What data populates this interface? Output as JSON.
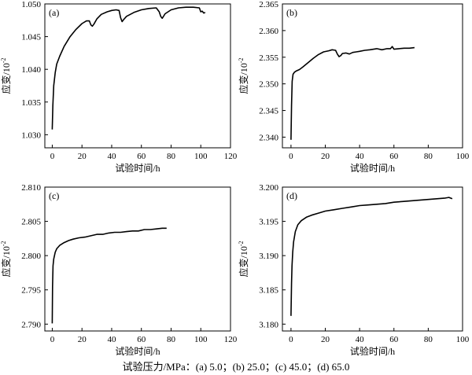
{
  "caption": "试验压力/MPa：(a) 5.0；(b) 25.0；(c) 45.0；(d) 65.0",
  "chart_data": [
    {
      "type": "line",
      "panel_label": "(a)",
      "xlabel": "试验时间/h",
      "ylabel": "应变/10",
      "ylabel_sup": "-2",
      "xlim": [
        -5,
        120
      ],
      "ylim": [
        1.028,
        1.05
      ],
      "xticks": [
        0,
        20,
        40,
        60,
        80,
        100,
        120
      ],
      "yticks": [
        1.03,
        1.035,
        1.04,
        1.045,
        1.05
      ],
      "ytick_decimals": 3,
      "series": [
        {
          "x": [
            0,
            0.4,
            1,
            2,
            3,
            5,
            8,
            12,
            16,
            20,
            23,
            25,
            26,
            27,
            28,
            30,
            33,
            37,
            40,
            43,
            45,
            46,
            47,
            48,
            50,
            55,
            60,
            65,
            70,
            72,
            73,
            74,
            76,
            80,
            85,
            90,
            95,
            99,
            100,
            101,
            102,
            103
          ],
          "y": [
            1.0308,
            1.0345,
            1.0375,
            1.0395,
            1.0408,
            1.042,
            1.0435,
            1.045,
            1.0461,
            1.047,
            1.0474,
            1.0474,
            1.0468,
            1.0466,
            1.0469,
            1.0477,
            1.0484,
            1.0488,
            1.049,
            1.0491,
            1.049,
            1.0479,
            1.0473,
            1.0476,
            1.0481,
            1.0487,
            1.0491,
            1.0493,
            1.0494,
            1.0488,
            1.0481,
            1.0478,
            1.0485,
            1.0491,
            1.0494,
            1.0495,
            1.0495,
            1.0494,
            1.0488,
            1.0489,
            1.0486,
            1.0487
          ]
        }
      ]
    },
    {
      "type": "line",
      "panel_label": "(b)",
      "xlabel": "试验时间/h",
      "ylabel": "应变/10",
      "ylabel_sup": "-2",
      "xlim": [
        -5,
        100
      ],
      "ylim": [
        2.338,
        2.365
      ],
      "xticks": [
        0,
        20,
        40,
        60,
        80,
        100
      ],
      "yticks": [
        2.34,
        2.345,
        2.35,
        2.355,
        2.36,
        2.365
      ],
      "ytick_decimals": 3,
      "series": [
        {
          "x": [
            0,
            0.3,
            0.7,
            1.2,
            2,
            3,
            5,
            7,
            10,
            13,
            16,
            19,
            22,
            24,
            26,
            27,
            28,
            29,
            30,
            32,
            34,
            36,
            38,
            40,
            43,
            46,
            50,
            53,
            56,
            58,
            59,
            60,
            63,
            66,
            69,
            72
          ],
          "y": [
            2.3395,
            2.346,
            2.3505,
            2.3518,
            2.3522,
            2.3524,
            2.3527,
            2.3532,
            2.354,
            2.3548,
            2.3555,
            2.356,
            2.3562,
            2.3564,
            2.3563,
            2.3556,
            2.3551,
            2.3553,
            2.3557,
            2.3558,
            2.3556,
            2.3559,
            2.356,
            2.3561,
            2.3563,
            2.3564,
            2.3566,
            2.3564,
            2.3566,
            2.3566,
            2.357,
            2.3565,
            2.3566,
            2.3567,
            2.3567,
            2.3568
          ]
        }
      ]
    },
    {
      "type": "line",
      "panel_label": "(c)",
      "xlabel": "试验时间/h",
      "ylabel": "应变/10",
      "ylabel_sup": "-2",
      "xlim": [
        -5,
        120
      ],
      "ylim": [
        2.789,
        2.81
      ],
      "xticks": [
        0,
        20,
        40,
        60,
        80,
        100,
        120
      ],
      "yticks": [
        2.79,
        2.795,
        2.8,
        2.805,
        2.81
      ],
      "ytick_decimals": 3,
      "series": [
        {
          "x": [
            0,
            0.2,
            0.5,
            1,
            2,
            3,
            5,
            8,
            11,
            14,
            18,
            22,
            26,
            30,
            34,
            38,
            42,
            46,
            50,
            54,
            58,
            62,
            66,
            70,
            74,
            77
          ],
          "y": [
            2.7901,
            2.7955,
            2.7985,
            2.7995,
            2.8005,
            2.801,
            2.8015,
            2.8019,
            2.8022,
            2.8024,
            2.8026,
            2.8027,
            2.8029,
            2.8031,
            2.8031,
            2.8033,
            2.8034,
            2.8034,
            2.8035,
            2.8036,
            2.8036,
            2.8038,
            2.8038,
            2.8039,
            2.804,
            2.804
          ]
        }
      ]
    },
    {
      "type": "line",
      "panel_label": "(d)",
      "xlabel": "试验时间/h",
      "ylabel": "应变/10",
      "ylabel_sup": "-2",
      "xlim": [
        -5,
        100
      ],
      "ylim": [
        3.179,
        3.2
      ],
      "xticks": [
        0,
        20,
        40,
        60,
        80,
        100
      ],
      "yticks": [
        3.18,
        3.185,
        3.19,
        3.195,
        3.2
      ],
      "ytick_decimals": 3,
      "series": [
        {
          "x": [
            0,
            0.3,
            0.6,
            1,
            1.5,
            2.5,
            4,
            6,
            9,
            12,
            16,
            20,
            25,
            30,
            35,
            40,
            45,
            50,
            55,
            60,
            65,
            70,
            75,
            80,
            85,
            90,
            92,
            94
          ],
          "y": [
            3.1812,
            3.186,
            3.1885,
            3.1905,
            3.192,
            3.1935,
            3.1945,
            3.1951,
            3.1956,
            3.1959,
            3.1962,
            3.1965,
            3.1967,
            3.1969,
            3.1971,
            3.1973,
            3.1974,
            3.1975,
            3.1976,
            3.1978,
            3.1979,
            3.198,
            3.1981,
            3.1982,
            3.1983,
            3.1984,
            3.1985,
            3.1983
          ]
        }
      ]
    }
  ]
}
